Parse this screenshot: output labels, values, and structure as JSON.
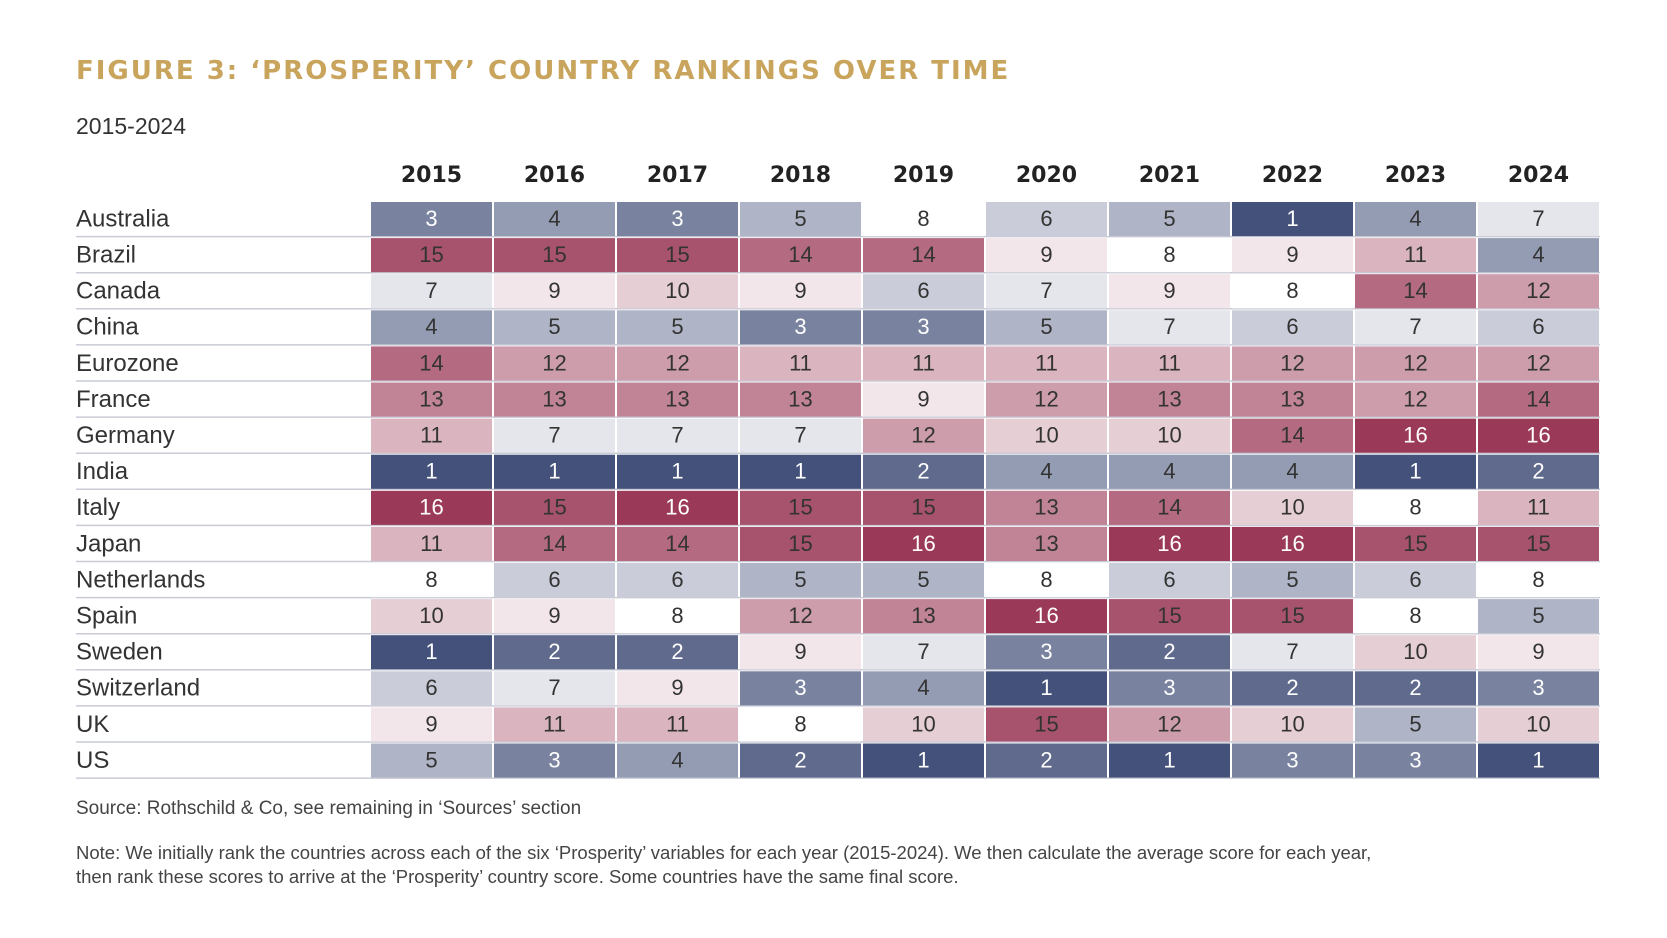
{
  "header": {
    "title": "FIGURE 3: ‘PROSPERITY’ COUNTRY RANKINGS OVER TIME",
    "subtitle": "2015-2024"
  },
  "footer": {
    "source": "Source: Rothschild & Co, see remaining in ‘Sources’ section",
    "note": "Note: We initially rank the countries across each of the six ‘Prosperity’ variables for each year (2015-2024). We then calculate the average score for each year, then rank these scores to arrive at the ‘Prosperity’ country score. Some countries have the same final score."
  },
  "colors": {
    "title": "#c9a45c",
    "scale_low": "#44517a",
    "scale_mid": "#ffffff",
    "scale_high": "#9b3a58"
  },
  "chart_data": {
    "type": "heatmap",
    "title": "FIGURE 3: ‘PROSPERITY’ COUNTRY RANKINGS OVER TIME",
    "subtitle": "2015-2024",
    "x": [
      "2015",
      "2016",
      "2017",
      "2018",
      "2019",
      "2020",
      "2021",
      "2022",
      "2023",
      "2024"
    ],
    "y": [
      "Australia",
      "Brazil",
      "Canada",
      "China",
      "Eurozone",
      "France",
      "Germany",
      "India",
      "Italy",
      "Japan",
      "Netherlands",
      "Spain",
      "Sweden",
      "Switzerland",
      "UK",
      "US"
    ],
    "values": [
      [
        3,
        4,
        3,
        5,
        8,
        6,
        5,
        1,
        4,
        7
      ],
      [
        15,
        15,
        15,
        14,
        14,
        9,
        8,
        9,
        11,
        4
      ],
      [
        7,
        9,
        10,
        9,
        6,
        7,
        9,
        8,
        14,
        12
      ],
      [
        4,
        5,
        5,
        3,
        3,
        5,
        7,
        6,
        7,
        6
      ],
      [
        14,
        12,
        12,
        11,
        11,
        11,
        11,
        12,
        12,
        12
      ],
      [
        13,
        13,
        13,
        13,
        9,
        12,
        13,
        13,
        12,
        14
      ],
      [
        11,
        7,
        7,
        7,
        12,
        10,
        10,
        14,
        16,
        16
      ],
      [
        1,
        1,
        1,
        1,
        2,
        4,
        4,
        4,
        1,
        2
      ],
      [
        16,
        15,
        16,
        15,
        15,
        13,
        14,
        10,
        8,
        11
      ],
      [
        11,
        14,
        14,
        15,
        16,
        13,
        16,
        16,
        15,
        15
      ],
      [
        8,
        6,
        6,
        5,
        5,
        8,
        6,
        5,
        6,
        8
      ],
      [
        10,
        9,
        8,
        12,
        13,
        16,
        15,
        15,
        8,
        5
      ],
      [
        1,
        2,
        2,
        9,
        7,
        3,
        2,
        7,
        10,
        9
      ],
      [
        6,
        7,
        9,
        3,
        4,
        1,
        3,
        2,
        2,
        3
      ],
      [
        9,
        11,
        11,
        8,
        10,
        15,
        12,
        10,
        5,
        10
      ],
      [
        5,
        3,
        4,
        2,
        1,
        2,
        1,
        3,
        3,
        1
      ]
    ],
    "color_scale": {
      "min": 1,
      "mid": 8,
      "max": 16
    }
  }
}
